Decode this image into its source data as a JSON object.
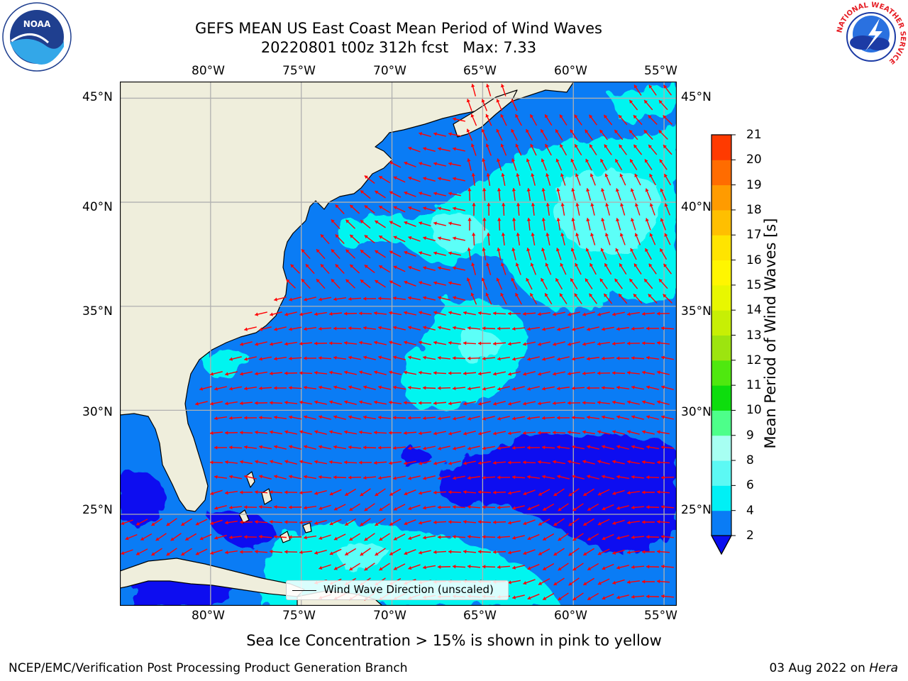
{
  "title": {
    "line1": "GEFS MEAN US East Coast Mean Period of Wind Waves",
    "line2": "20220801 t00z 312h fcst   Max: 7.33"
  },
  "map": {
    "lon_labels": [
      "80°W",
      "75°W",
      "70°W",
      "65°W",
      "60°W",
      "55°W"
    ],
    "lat_labels": [
      "45°N",
      "40°N",
      "35°N",
      "30°N",
      "25°N"
    ],
    "lon_range": [
      -85,
      -54.3
    ],
    "lat_range": [
      20.6,
      45.8
    ],
    "colors": {
      "land": "#efeedc",
      "ocean_2_4": "#0a7cf5",
      "ocean_4_6": "#00f5f0",
      "ocean_6_7": "#5cfff8",
      "ocean_lt2": "#0a0ef0",
      "arrows": "#ff0000",
      "grid": "#b0b0b0"
    }
  },
  "legend": {
    "label": "Wind Wave Direction (unscaled)"
  },
  "colorbar": {
    "label": "Mean Period of Wind Waves [s]",
    "ticks": [
      "2",
      "4",
      "6",
      "8",
      "9",
      "10",
      "11",
      "12",
      "13",
      "14",
      "15",
      "16",
      "17",
      "18",
      "19",
      "20",
      "21"
    ],
    "colors": [
      "#0a7cf5",
      "#00f0f5",
      "#5cf9f4",
      "#a7fff2",
      "#4dff8a",
      "#0ddd0d",
      "#4fe80f",
      "#9de40f",
      "#c7ef05",
      "#e8f700",
      "#fff600",
      "#ffe400",
      "#ffbf00",
      "#ff9b00",
      "#ff6c00",
      "#ff3a00",
      "#ff0000"
    ]
  },
  "ice_note": "Sea Ice Concentration > 15% is shown in pink to yellow",
  "footer": {
    "left": "NCEP/EMC/Verification Post Processing Product Generation Branch",
    "right_date": "03 Aug 2022 on ",
    "right_host": "Hera"
  },
  "logos": {
    "left": "NOAA",
    "right_ring": "NATIONAL WEATHER SERVICE"
  }
}
